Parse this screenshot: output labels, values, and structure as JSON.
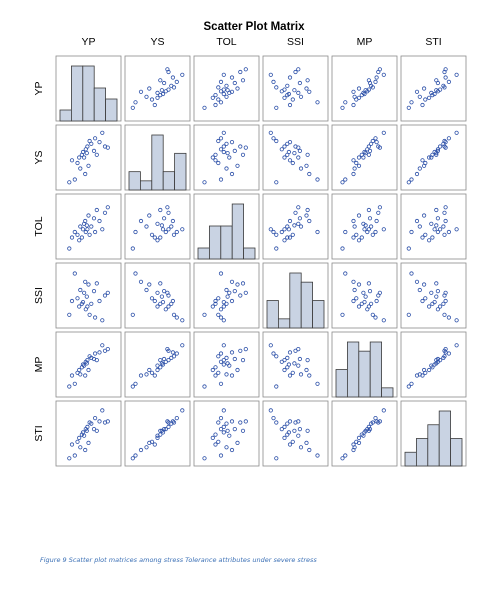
{
  "chart_data": {
    "type": "scatter",
    "title": "Scatter Plot Matrix",
    "variables": [
      "YP",
      "YS",
      "TOL",
      "SSI",
      "MP",
      "STI"
    ],
    "diagonal": "histogram",
    "observations": {
      "YP": [
        0.15,
        0.2,
        0.25,
        0.3,
        0.33,
        0.35,
        0.38,
        0.4,
        0.42,
        0.44,
        0.45,
        0.47,
        0.48,
        0.5,
        0.52,
        0.55,
        0.6,
        0.62,
        0.65,
        0.7,
        0.75,
        0.8,
        0.85
      ],
      "YS": [
        0.05,
        0.45,
        0.1,
        0.4,
        0.5,
        0.3,
        0.55,
        0.6,
        0.5,
        0.2,
        0.65,
        0.58,
        0.7,
        0.35,
        0.8,
        0.75,
        0.62,
        0.85,
        0.55,
        0.78,
        0.95,
        0.7,
        0.68
      ],
      "TOL": [
        0.1,
        0.3,
        0.4,
        0.35,
        0.25,
        0.5,
        0.3,
        0.45,
        0.55,
        0.6,
        0.4,
        0.52,
        0.45,
        0.7,
        0.35,
        0.5,
        0.65,
        0.4,
        0.8,
        0.6,
        0.45,
        0.75,
        0.85
      ],
      "SSI": [
        0.15,
        0.4,
        0.9,
        0.45,
        0.3,
        0.6,
        0.35,
        0.38,
        0.55,
        0.75,
        0.25,
        0.48,
        0.3,
        0.7,
        0.15,
        0.35,
        0.58,
        0.1,
        0.72,
        0.4,
        0.05,
        0.5,
        0.55
      ],
      "MP": [
        0.1,
        0.3,
        0.15,
        0.35,
        0.4,
        0.32,
        0.45,
        0.5,
        0.48,
        0.3,
        0.55,
        0.52,
        0.58,
        0.4,
        0.65,
        0.62,
        0.6,
        0.7,
        0.58,
        0.72,
        0.85,
        0.75,
        0.78
      ],
      "STI": [
        0.05,
        0.3,
        0.1,
        0.35,
        0.42,
        0.25,
        0.48,
        0.52,
        0.46,
        0.2,
        0.58,
        0.55,
        0.62,
        0.33,
        0.7,
        0.68,
        0.58,
        0.78,
        0.55,
        0.72,
        0.92,
        0.7,
        0.72
      ]
    },
    "histograms": {
      "YP": [
        1,
        5,
        5,
        3,
        2
      ],
      "YS": [
        2,
        1,
        6,
        2,
        4
      ],
      "TOL": [
        1,
        3,
        3,
        5,
        1
      ],
      "SSI": [
        3,
        1,
        6,
        5,
        3
      ],
      "MP": [
        3,
        6,
        5,
        6,
        1
      ],
      "STI": [
        1,
        2,
        3,
        4,
        2
      ]
    },
    "colors": {
      "point": "#2b4fa8",
      "bar_fill": "#c9d3e3",
      "bar_stroke": "#3b3b3b",
      "frame": "#8a8a8a"
    }
  },
  "caption": "Figure 9 Scatter plot matrices among stress Tolerance attributes under severe stress"
}
